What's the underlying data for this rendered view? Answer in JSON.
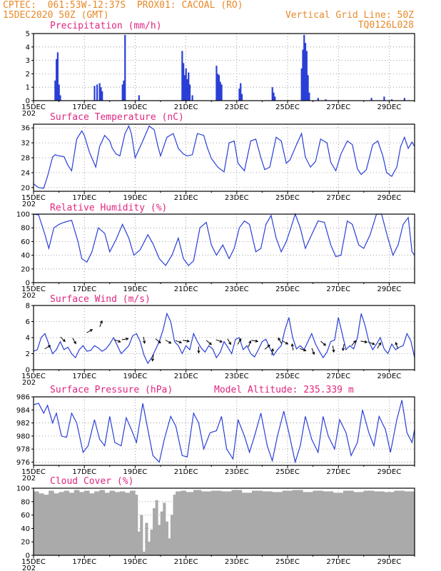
{
  "header": {
    "left_line1": "CPTEC:  061:53W-12:37S  PROX01: CACOAL (RO)",
    "left_line2": "15DEC2020 50Z (GMT)",
    "right_line1": "Vertical Grid Line: 50Z",
    "right_line2": "TQ0126L028"
  },
  "x_ticks": [
    "15DEC",
    "17DEC",
    "19DEC",
    "21DEC",
    "23DEC",
    "25DEC",
    "27DEC",
    "29DEC"
  ],
  "x_tick_sub": "202",
  "colors": {
    "line": "#2a3fd6",
    "bar": "#2a3fd6",
    "cloud": "#aaaaaa",
    "title": "#e0267f",
    "header": "#e8892a"
  },
  "chart_data": [
    {
      "id": "precip",
      "type": "bar",
      "title": "Precipitation (mm/h)",
      "ylim": [
        0,
        5
      ],
      "yticks": [
        0,
        1,
        2,
        3,
        4,
        5
      ],
      "x_range_days": [
        0,
        15
      ],
      "bars": [
        [
          0.85,
          1.5
        ],
        [
          0.9,
          3.1
        ],
        [
          0.95,
          3.6
        ],
        [
          1.0,
          1.2
        ],
        [
          1.05,
          0.4
        ],
        [
          2.4,
          1.1
        ],
        [
          2.5,
          1.2
        ],
        [
          2.6,
          1.3
        ],
        [
          2.65,
          1.0
        ],
        [
          2.7,
          0.7
        ],
        [
          3.5,
          1.2
        ],
        [
          3.55,
          1.5
        ],
        [
          3.6,
          4.9
        ],
        [
          4.15,
          0.4
        ],
        [
          5.85,
          3.7
        ],
        [
          5.9,
          2.8
        ],
        [
          5.95,
          1.9
        ],
        [
          6.0,
          2.4
        ],
        [
          6.05,
          1.6
        ],
        [
          6.1,
          2.1
        ],
        [
          6.15,
          1.2
        ],
        [
          6.25,
          0.4
        ],
        [
          7.2,
          2.6
        ],
        [
          7.25,
          2.0
        ],
        [
          7.3,
          1.9
        ],
        [
          7.35,
          1.4
        ],
        [
          7.4,
          1.2
        ],
        [
          8.1,
          0.9
        ],
        [
          8.15,
          1.3
        ],
        [
          8.2,
          0.5
        ],
        [
          9.4,
          1.0
        ],
        [
          9.45,
          0.6
        ],
        [
          9.5,
          0.3
        ],
        [
          10.55,
          2.4
        ],
        [
          10.6,
          3.8
        ],
        [
          10.65,
          4.9
        ],
        [
          10.7,
          4.3
        ],
        [
          10.75,
          3.7
        ],
        [
          10.8,
          1.9
        ],
        [
          10.85,
          0.6
        ],
        [
          11.2,
          0.2
        ],
        [
          11.5,
          0.1
        ],
        [
          13.3,
          0.2
        ],
        [
          13.8,
          0.3
        ],
        [
          14.1,
          0.1
        ],
        [
          14.6,
          0.2
        ]
      ]
    },
    {
      "id": "temp",
      "type": "line",
      "title": "Surface Temperature (nC)",
      "ylim": [
        19,
        37
      ],
      "yticks": [
        20,
        24,
        28,
        32,
        36
      ],
      "x_range_days": [
        0,
        15
      ],
      "x": [
        0,
        0.2,
        0.4,
        0.55,
        0.75,
        0.85,
        1.0,
        1.2,
        1.35,
        1.5,
        1.7,
        1.9,
        2.0,
        2.2,
        2.45,
        2.6,
        2.8,
        3.0,
        3.1,
        3.25,
        3.4,
        3.6,
        3.75,
        3.85,
        4.0,
        4.3,
        4.55,
        4.75,
        4.9,
        5.0,
        5.25,
        5.5,
        5.7,
        5.9,
        6.05,
        6.25,
        6.45,
        6.7,
        6.85,
        7.0,
        7.25,
        7.5,
        7.7,
        7.9,
        8.05,
        8.3,
        8.55,
        8.75,
        8.95,
        9.1,
        9.3,
        9.55,
        9.75,
        9.95,
        10.1,
        10.35,
        10.55,
        10.7,
        10.9,
        11.1,
        11.3,
        11.55,
        11.7,
        11.9,
        12.1,
        12.35,
        12.55,
        12.75,
        12.9,
        13.1,
        13.35,
        13.55,
        13.75,
        13.9,
        14.1,
        14.3,
        14.45,
        14.6,
        14.75,
        14.9,
        15.0
      ],
      "y": [
        21,
        20,
        19.8,
        23,
        28.2,
        28.8,
        28.5,
        28.3,
        26,
        24.5,
        33,
        35.2,
        34,
        29.5,
        25.5,
        31,
        34,
        32.5,
        30.5,
        29,
        28.5,
        34.5,
        36.5,
        34.5,
        28,
        32.5,
        36.5,
        35.5,
        31,
        28.5,
        33.5,
        34.5,
        30.5,
        29,
        28.5,
        28.8,
        34.5,
        34,
        30.5,
        27.8,
        25.5,
        24.2,
        32,
        32.5,
        26.5,
        24.5,
        32.5,
        33,
        28,
        24.8,
        25.5,
        33.5,
        32.5,
        26.5,
        27.5,
        31.5,
        34.5,
        28.2,
        25.5,
        27,
        33,
        32,
        26.8,
        24.5,
        29,
        32.5,
        31.5,
        25,
        23.5,
        24.8,
        31.5,
        32.5,
        28.5,
        24,
        23,
        25.5,
        31,
        33.5,
        30.5,
        32.2,
        31
      ]
    },
    {
      "id": "rh",
      "type": "line",
      "title": "Relative Humidity (%)",
      "ylim": [
        0,
        100
      ],
      "yticks": [
        0,
        20,
        40,
        60,
        80,
        100
      ],
      "x_range_days": [
        0,
        15
      ],
      "x": [
        0,
        0.2,
        0.45,
        0.6,
        0.8,
        1.0,
        1.2,
        1.5,
        1.75,
        1.9,
        2.1,
        2.3,
        2.55,
        2.8,
        3.0,
        3.25,
        3.5,
        3.75,
        3.95,
        4.2,
        4.5,
        4.7,
        4.95,
        5.2,
        5.45,
        5.7,
        5.9,
        6.1,
        6.3,
        6.55,
        6.8,
        7.0,
        7.2,
        7.45,
        7.7,
        7.9,
        8.1,
        8.3,
        8.5,
        8.75,
        8.95,
        9.15,
        9.35,
        9.55,
        9.75,
        9.95,
        10.15,
        10.3,
        10.5,
        10.7,
        10.95,
        11.2,
        11.45,
        11.7,
        11.9,
        12.1,
        12.35,
        12.55,
        12.8,
        13.0,
        13.25,
        13.5,
        13.7,
        13.95,
        14.15,
        14.35,
        14.55,
        14.75,
        14.9,
        15.0
      ],
      "y": [
        100,
        99,
        70,
        50,
        80,
        85,
        88,
        91,
        60,
        35,
        30,
        45,
        80,
        72,
        45,
        63,
        85,
        65,
        40,
        48,
        70,
        57,
        35,
        25,
        40,
        65,
        35,
        25,
        32,
        80,
        88,
        55,
        40,
        55,
        35,
        50,
        80,
        90,
        85,
        45,
        50,
        85,
        98,
        65,
        45,
        60,
        82,
        100,
        80,
        50,
        70,
        90,
        88,
        55,
        38,
        40,
        90,
        85,
        55,
        50,
        70,
        100,
        100,
        65,
        40,
        55,
        85,
        95,
        45,
        40
      ]
    },
    {
      "id": "wind",
      "type": "line",
      "title": "Surface Wind (m/s)",
      "ylim": [
        0,
        8
      ],
      "yticks": [
        0,
        2,
        4,
        6,
        8
      ],
      "x_range_days": [
        0,
        15
      ],
      "x": [
        0,
        0.15,
        0.3,
        0.45,
        0.6,
        0.75,
        0.9,
        1.05,
        1.2,
        1.35,
        1.5,
        1.65,
        1.8,
        1.95,
        2.1,
        2.25,
        2.4,
        2.55,
        2.7,
        2.85,
        3.0,
        3.15,
        3.3,
        3.45,
        3.6,
        3.75,
        3.9,
        4.05,
        4.2,
        4.35,
        4.5,
        4.65,
        4.8,
        4.95,
        5.1,
        5.25,
        5.4,
        5.55,
        5.7,
        5.85,
        6.0,
        6.15,
        6.3,
        6.45,
        6.6,
        6.75,
        6.9,
        7.05,
        7.2,
        7.35,
        7.5,
        7.65,
        7.8,
        7.95,
        8.1,
        8.25,
        8.4,
        8.55,
        8.7,
        8.85,
        9.0,
        9.15,
        9.3,
        9.45,
        9.6,
        9.75,
        9.9,
        10.05,
        10.2,
        10.35,
        10.5,
        10.65,
        10.8,
        10.95,
        11.1,
        11.25,
        11.4,
        11.55,
        11.7,
        11.85,
        12.0,
        12.15,
        12.3,
        12.45,
        12.6,
        12.75,
        12.9,
        13.05,
        13.2,
        13.35,
        13.5,
        13.65,
        13.8,
        13.95,
        14.1,
        14.25,
        14.4,
        14.55,
        14.7,
        14.85,
        15.0
      ],
      "y": [
        2.3,
        2.5,
        4.0,
        4.5,
        3.2,
        2.0,
        2.5,
        3.5,
        2.5,
        2.8,
        2.0,
        1.5,
        2.5,
        3.0,
        2.3,
        2.4,
        3.0,
        2.7,
        2.3,
        2.6,
        3.2,
        4.0,
        3.0,
        2.0,
        2.5,
        3.0,
        4.2,
        4.5,
        3.5,
        1.8,
        0.8,
        1.5,
        2.5,
        3.5,
        5.0,
        7.0,
        6.0,
        3.5,
        3.0,
        2.0,
        3.0,
        2.5,
        4.5,
        3.5,
        2.7,
        2.2,
        3.0,
        2.6,
        1.5,
        2.2,
        3.5,
        2.8,
        2.0,
        3.8,
        4.0,
        2.5,
        3.0,
        2.0,
        1.6,
        2.5,
        3.5,
        3.8,
        2.7,
        1.8,
        2.5,
        3.0,
        5.0,
        6.5,
        4.0,
        2.6,
        3.0,
        2.5,
        3.5,
        4.5,
        3.2,
        2.3,
        1.5,
        2.2,
        3.5,
        3.7,
        6.5,
        4.5,
        2.5,
        3.0,
        2.6,
        4.0,
        7.0,
        5.5,
        3.5,
        2.5,
        3.2,
        4.0,
        2.6,
        2.0,
        3.2,
        2.5,
        2.8,
        3.0,
        4.5,
        3.6,
        1.5
      ]
    },
    {
      "id": "pressure",
      "type": "line",
      "title": "Surface Pressure (hPa)",
      "annotation": "Model Altitude: 235.339 m",
      "ylim": [
        975.5,
        986
      ],
      "yticks": [
        976,
        978,
        980,
        982,
        984,
        986
      ],
      "x_range_days": [
        0,
        15
      ],
      "x": [
        0,
        0.2,
        0.4,
        0.55,
        0.75,
        0.9,
        1.1,
        1.3,
        1.5,
        1.7,
        1.95,
        2.15,
        2.4,
        2.6,
        2.8,
        3.0,
        3.2,
        3.45,
        3.65,
        3.85,
        4.05,
        4.3,
        4.5,
        4.7,
        4.95,
        5.15,
        5.4,
        5.6,
        5.85,
        6.05,
        6.3,
        6.5,
        6.7,
        6.95,
        7.2,
        7.4,
        7.6,
        7.85,
        8.05,
        8.3,
        8.5,
        8.7,
        8.95,
        9.2,
        9.4,
        9.6,
        9.85,
        10.05,
        10.3,
        10.5,
        10.7,
        10.95,
        11.2,
        11.4,
        11.6,
        11.85,
        12.05,
        12.3,
        12.5,
        12.75,
        12.95,
        13.2,
        13.4,
        13.6,
        13.85,
        14.05,
        14.3,
        14.5,
        14.7,
        14.9,
        15.0
      ],
      "y": [
        984.8,
        985.0,
        983.5,
        984.7,
        982.0,
        983.5,
        980.0,
        979.8,
        983.5,
        982.0,
        977.5,
        978.5,
        982.5,
        979.5,
        978.5,
        983.0,
        979.0,
        978.5,
        982.8,
        981.0,
        979.0,
        985.0,
        981.0,
        977.0,
        976.0,
        979.5,
        983.0,
        981.5,
        977.0,
        976.8,
        983.5,
        982.0,
        978.0,
        980.5,
        980.8,
        983.0,
        978.0,
        976.5,
        982.5,
        980.0,
        977.5,
        980.0,
        983.5,
        978.5,
        976.2,
        980.0,
        983.8,
        980.5,
        976.0,
        978.5,
        983.0,
        979.5,
        977.5,
        983.0,
        980.0,
        978.0,
        982.5,
        980.5,
        977.0,
        979.0,
        984.0,
        980.5,
        978.5,
        983.0,
        981.0,
        977.5,
        982.5,
        985.5,
        980.5,
        979.0,
        981.0
      ]
    },
    {
      "id": "cloud",
      "type": "area",
      "title": "Cloud Cover (%)",
      "ylim": [
        0,
        100
      ],
      "yticks": [
        0,
        20,
        40,
        60,
        80,
        100
      ],
      "x_range_days": [
        0,
        15
      ],
      "x": [
        0,
        0.2,
        0.4,
        0.6,
        0.8,
        1.0,
        1.2,
        1.4,
        1.6,
        1.8,
        2.0,
        2.2,
        2.4,
        2.6,
        2.8,
        3.0,
        3.2,
        3.4,
        3.6,
        3.8,
        4.0,
        4.1,
        4.2,
        4.3,
        4.4,
        4.5,
        4.6,
        4.7,
        4.8,
        4.9,
        5.0,
        5.1,
        5.2,
        5.3,
        5.4,
        5.5,
        5.6,
        5.8,
        6.0,
        6.3,
        6.6,
        7.0,
        7.4,
        7.8,
        8.2,
        8.6,
        9.0,
        9.4,
        9.8,
        10.2,
        10.6,
        11.0,
        11.4,
        11.8,
        12.2,
        12.6,
        13.0,
        13.4,
        13.8,
        14.2,
        14.6,
        15.0
      ],
      "y": [
        95,
        92,
        90,
        96,
        92,
        94,
        96,
        93,
        97,
        94,
        96,
        92,
        95,
        97,
        93,
        96,
        94,
        95,
        93,
        96,
        90,
        35,
        60,
        5,
        48,
        20,
        38,
        70,
        82,
        45,
        65,
        78,
        50,
        25,
        60,
        90,
        95,
        96,
        94,
        97,
        95,
        96,
        95,
        97,
        93,
        96,
        95,
        94,
        96,
        97,
        94,
        96,
        95,
        93,
        96,
        94,
        96,
        95,
        94,
        96,
        95,
        94
      ]
    }
  ]
}
